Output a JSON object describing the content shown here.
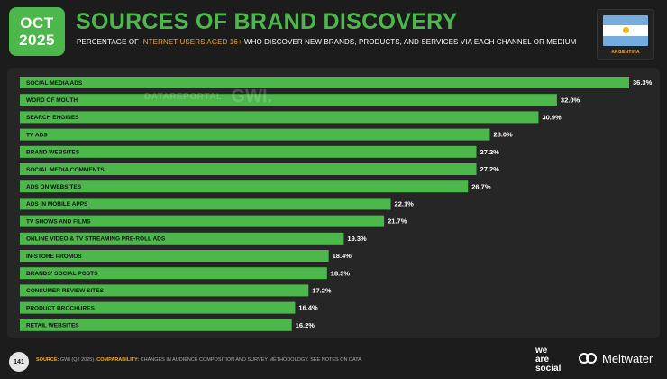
{
  "header": {
    "month": "OCT",
    "year": "2025",
    "title": "SOURCES OF BRAND DISCOVERY",
    "subtitle_pre": "PERCENTAGE OF ",
    "subtitle_highlight": "INTERNET USERS AGED 16+",
    "subtitle_post": " WHO DISCOVER NEW BRANDS, PRODUCTS, AND SERVICES VIA EACH CHANNEL OR MEDIUM"
  },
  "country": {
    "name": "ARGENTINA",
    "flag_icon": "argentina-flag-icon"
  },
  "watermark": {
    "datareportal": "DATAREPORTAL",
    "gwi": "GWI."
  },
  "colors": {
    "accent": "#4cb84c",
    "bar": "#4cb84c",
    "highlight": "#f5a623",
    "background": "#1c1c1c"
  },
  "chart_data": {
    "type": "bar",
    "orientation": "horizontal",
    "title": "SOURCES OF BRAND DISCOVERY",
    "xlabel": "",
    "ylabel": "",
    "xlim": [
      0,
      36.3
    ],
    "value_suffix": "%",
    "categories": [
      "SOCIAL MEDIA ADS",
      "WORD OF MOUTH",
      "SEARCH ENGINES",
      "TV ADS",
      "BRAND WEBSITES",
      "SOCIAL MEDIA COMMENTS",
      "ADS ON WEBSITES",
      "ADS IN MOBILE APPS",
      "TV SHOWS AND FILMS",
      "ONLINE VIDEO & TV STREAMING PRE-ROLL ADS",
      "IN-STORE PROMOS",
      "BRANDS' SOCIAL POSTS",
      "CONSUMER REVIEW SITES",
      "PRODUCT BROCHURES",
      "RETAIL WEBSITES"
    ],
    "values": [
      36.3,
      32.0,
      30.9,
      28.0,
      27.2,
      27.2,
      26.7,
      22.1,
      21.7,
      19.3,
      18.4,
      18.3,
      17.2,
      16.4,
      16.2
    ],
    "labels": [
      "36.3%",
      "32.0%",
      "30.9%",
      "28.0%",
      "27.2%",
      "27.2%",
      "26.7%",
      "22.1%",
      "21.7%",
      "19.3%",
      "18.4%",
      "18.3%",
      "17.2%",
      "16.4%",
      "16.2%"
    ]
  },
  "footer": {
    "page": "141",
    "source_label": "SOURCE:",
    "source_text": " GWI (Q2 2025). ",
    "comparability_label": "COMPARABILITY:",
    "comparability_text": " CHANGES IN AUDIENCE COMPOSITION AND SURVEY METHODOLOGY. SEE NOTES ON DATA.",
    "brand1_line1": "we",
    "brand1_line2": "are",
    "brand1_line3": "social",
    "brand2": "Meltwater"
  }
}
